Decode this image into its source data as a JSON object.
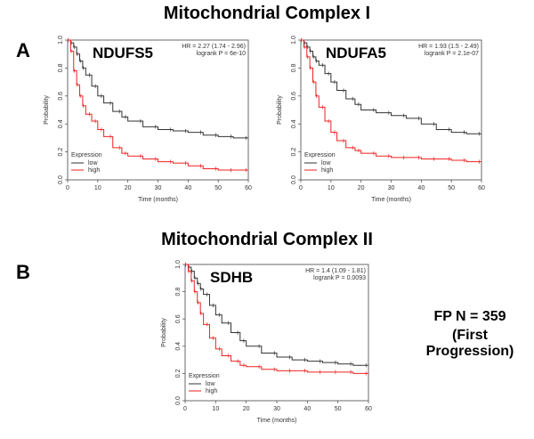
{
  "headings": {
    "complex1": "Mitochondrial Complex I",
    "complex2": "Mitochondrial Complex II"
  },
  "panel_labels": {
    "a": "A",
    "b": "B"
  },
  "cohort": {
    "line1": "FP  N = 359",
    "line2": "(First Progression)"
  },
  "colors": {
    "low": "#333333",
    "high": "#ee2222",
    "axis": "#444444"
  },
  "chart_data": [
    {
      "type": "line",
      "title": "NDUFS5",
      "xlabel": "Time (months)",
      "ylabel": "Probability",
      "xlim": [
        0,
        60
      ],
      "ylim": [
        0,
        1
      ],
      "xticks": [
        "0",
        "10",
        "20",
        "30",
        "40",
        "50",
        "60"
      ],
      "yticks": [
        "0.0",
        "0.2",
        "0.4",
        "0.6",
        "0.8",
        "1.0"
      ],
      "stats": {
        "hr": "HR = 2.27 (1.74 - 2.96)",
        "logrank": "logrank P = 6e-10"
      },
      "legend": {
        "title": "Expression",
        "entries": [
          "low",
          "high"
        ],
        "position": "bottom-left"
      },
      "series": [
        {
          "name": "low",
          "x": [
            0,
            1,
            2,
            3,
            4,
            5,
            6,
            8,
            10,
            12,
            15,
            18,
            20,
            25,
            30,
            35,
            40,
            45,
            50,
            55,
            60
          ],
          "y": [
            1.0,
            0.98,
            0.95,
            0.9,
            0.85,
            0.8,
            0.75,
            0.67,
            0.6,
            0.55,
            0.49,
            0.45,
            0.42,
            0.38,
            0.36,
            0.35,
            0.34,
            0.32,
            0.31,
            0.3,
            0.3
          ]
        },
        {
          "name": "high",
          "x": [
            0,
            1,
            2,
            3,
            4,
            5,
            6,
            8,
            10,
            12,
            15,
            18,
            20,
            25,
            30,
            35,
            40,
            45,
            50,
            55,
            60
          ],
          "y": [
            1.0,
            0.92,
            0.78,
            0.68,
            0.6,
            0.53,
            0.47,
            0.42,
            0.36,
            0.31,
            0.23,
            0.19,
            0.17,
            0.15,
            0.13,
            0.12,
            0.1,
            0.08,
            0.07,
            0.07,
            0.07
          ]
        }
      ]
    },
    {
      "type": "line",
      "title": "NDUFA5",
      "xlabel": "Time (months)",
      "ylabel": "Probability",
      "xlim": [
        0,
        60
      ],
      "ylim": [
        0,
        1
      ],
      "xticks": [
        "0",
        "10",
        "20",
        "30",
        "40",
        "50",
        "60"
      ],
      "yticks": [
        "0.0",
        "0.2",
        "0.4",
        "0.6",
        "0.8",
        "1.0"
      ],
      "stats": {
        "hr": "HR = 1.93 (1.5 - 2.49)",
        "logrank": "logrank P = 2.1e-07"
      },
      "legend": {
        "title": "Expression",
        "entries": [
          "low",
          "high"
        ],
        "position": "bottom-left"
      },
      "series": [
        {
          "name": "low",
          "x": [
            0,
            1,
            2,
            3,
            4,
            5,
            6,
            8,
            10,
            12,
            15,
            18,
            20,
            25,
            30,
            35,
            40,
            45,
            50,
            55,
            60
          ],
          "y": [
            1.0,
            0.98,
            0.95,
            0.92,
            0.88,
            0.85,
            0.82,
            0.76,
            0.7,
            0.64,
            0.58,
            0.54,
            0.5,
            0.48,
            0.46,
            0.44,
            0.4,
            0.36,
            0.34,
            0.33,
            0.33
          ]
        },
        {
          "name": "high",
          "x": [
            0,
            1,
            2,
            3,
            4,
            5,
            6,
            8,
            10,
            12,
            15,
            18,
            20,
            25,
            30,
            35,
            40,
            45,
            50,
            55,
            60
          ],
          "y": [
            1.0,
            0.95,
            0.88,
            0.8,
            0.7,
            0.6,
            0.52,
            0.42,
            0.34,
            0.28,
            0.23,
            0.21,
            0.19,
            0.17,
            0.16,
            0.16,
            0.15,
            0.15,
            0.14,
            0.13,
            0.13
          ]
        }
      ]
    },
    {
      "type": "line",
      "title": "SDHB",
      "xlabel": "Time (months)",
      "ylabel": "Probability",
      "xlim": [
        0,
        60
      ],
      "ylim": [
        0,
        1
      ],
      "xticks": [
        "0",
        "10",
        "20",
        "30",
        "40",
        "50",
        "60"
      ],
      "yticks": [
        "0.0",
        "0.2",
        "0.4",
        "0.6",
        "0.8",
        "1.0"
      ],
      "stats": {
        "hr": "HR = 1.4 (1.09 - 1.81)",
        "logrank": "logrank P = 0.0093"
      },
      "legend": {
        "title": "Expression",
        "entries": [
          "low",
          "high"
        ],
        "position": "bottom-left"
      },
      "series": [
        {
          "name": "low",
          "x": [
            0,
            1,
            2,
            3,
            4,
            5,
            6,
            8,
            10,
            12,
            15,
            18,
            20,
            25,
            30,
            35,
            40,
            45,
            50,
            55,
            60
          ],
          "y": [
            1.0,
            0.98,
            0.95,
            0.9,
            0.86,
            0.82,
            0.78,
            0.7,
            0.63,
            0.57,
            0.5,
            0.44,
            0.4,
            0.35,
            0.32,
            0.3,
            0.29,
            0.28,
            0.27,
            0.26,
            0.26
          ]
        },
        {
          "name": "high",
          "x": [
            0,
            1,
            2,
            3,
            4,
            5,
            6,
            8,
            10,
            12,
            15,
            18,
            20,
            25,
            30,
            35,
            40,
            45,
            50,
            55,
            60
          ],
          "y": [
            1.0,
            0.95,
            0.88,
            0.8,
            0.72,
            0.64,
            0.56,
            0.46,
            0.38,
            0.33,
            0.29,
            0.26,
            0.25,
            0.23,
            0.22,
            0.22,
            0.21,
            0.21,
            0.21,
            0.2,
            0.2
          ]
        }
      ]
    }
  ]
}
